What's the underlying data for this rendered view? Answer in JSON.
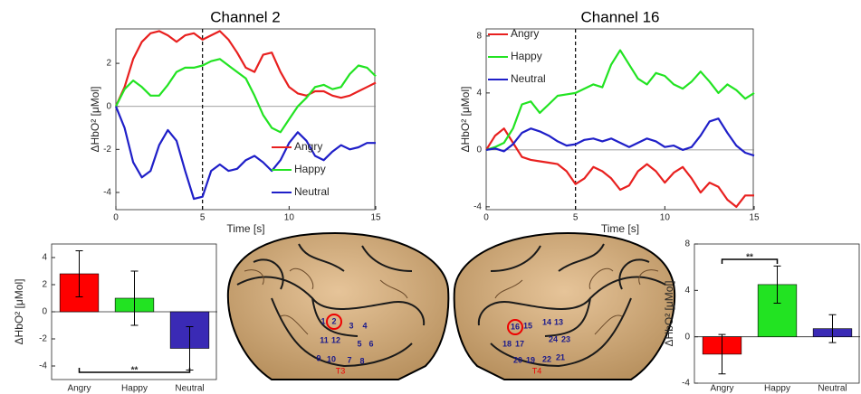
{
  "chart_data": [
    {
      "type": "line",
      "title": "Channel 2",
      "xlabel": "Time [s]",
      "ylabel": "ΔHbO² [μMol]",
      "x": [
        0,
        0.5,
        1,
        1.5,
        2,
        2.5,
        3,
        3.5,
        4,
        4.5,
        5,
        5.5,
        6,
        6.5,
        7,
        7.5,
        8,
        8.5,
        9,
        9.5,
        10,
        10.5,
        11,
        11.5,
        12,
        12.5,
        13,
        13.5,
        14,
        14.5,
        15
      ],
      "series": [
        {
          "name": "Angry",
          "color": "#e8201f",
          "values": [
            0,
            0.9,
            2.2,
            3.0,
            3.4,
            3.5,
            3.3,
            3.0,
            3.3,
            3.4,
            3.1,
            3.3,
            3.5,
            3.1,
            2.5,
            1.8,
            1.6,
            2.4,
            2.5,
            1.6,
            0.9,
            0.6,
            0.5,
            0.7,
            0.7,
            0.5,
            0.4,
            0.5,
            0.7,
            0.9,
            1.1
          ]
        },
        {
          "name": "Happy",
          "color": "#22e322",
          "values": [
            0,
            0.8,
            1.2,
            0.9,
            0.5,
            0.5,
            1.0,
            1.6,
            1.8,
            1.8,
            1.9,
            2.1,
            2.2,
            1.9,
            1.6,
            1.3,
            0.5,
            -0.4,
            -1.0,
            -1.2,
            -0.6,
            0.0,
            0.4,
            0.9,
            1.0,
            0.8,
            0.9,
            1.5,
            1.9,
            1.8,
            1.4
          ]
        },
        {
          "name": "Neutral",
          "color": "#1f1fc8",
          "values": [
            0,
            -1.0,
            -2.6,
            -3.3,
            -3.0,
            -1.8,
            -1.1,
            -1.6,
            -3.0,
            -4.3,
            -4.2,
            -3.0,
            -2.7,
            -3.0,
            -2.9,
            -2.5,
            -2.3,
            -2.6,
            -3.0,
            -2.5,
            -1.7,
            -1.2,
            -1.6,
            -2.3,
            -2.5,
            -2.1,
            -1.8,
            -2.0,
            -1.9,
            -1.7,
            -1.7
          ]
        }
      ],
      "xlim": [
        0,
        15
      ],
      "xticks": [
        0,
        5,
        10,
        15
      ],
      "ylim": [
        -4.8,
        3.6
      ],
      "yticks": [
        -4,
        -2,
        0,
        2
      ],
      "vline": 5,
      "hline": 0,
      "legend": "lower right"
    },
    {
      "type": "line",
      "title": "Channel 16",
      "xlabel": "Time [s]",
      "ylabel": "ΔHbO² [μMol]",
      "x": [
        0,
        0.5,
        1,
        1.5,
        2,
        2.5,
        3,
        3.5,
        4,
        4.5,
        5,
        5.5,
        6,
        6.5,
        7,
        7.5,
        8,
        8.5,
        9,
        9.5,
        10,
        10.5,
        11,
        11.5,
        12,
        12.5,
        13,
        13.5,
        14,
        14.5,
        15
      ],
      "series": [
        {
          "name": "Angry",
          "color": "#e8201f",
          "values": [
            0,
            1.0,
            1.5,
            0.5,
            -0.5,
            -0.7,
            -0.8,
            -0.9,
            -1.0,
            -1.5,
            -2.4,
            -2.0,
            -1.2,
            -1.5,
            -2.0,
            -2.8,
            -2.5,
            -1.5,
            -1.0,
            -1.5,
            -2.3,
            -1.6,
            -1.2,
            -2.0,
            -3.0,
            -2.3,
            -2.6,
            -3.5,
            -4.0,
            -3.2,
            -3.2
          ]
        },
        {
          "name": "Happy",
          "color": "#22e322",
          "values": [
            0,
            0.2,
            0.5,
            1.5,
            3.2,
            3.4,
            2.6,
            3.2,
            3.8,
            3.9,
            4.0,
            4.3,
            4.6,
            4.4,
            6.0,
            7.0,
            6.0,
            5.0,
            4.6,
            5.4,
            5.2,
            4.6,
            4.3,
            4.8,
            5.5,
            4.8,
            4.0,
            4.6,
            4.2,
            3.6,
            4.0
          ]
        },
        {
          "name": "Neutral",
          "color": "#1f1fc8",
          "values": [
            0,
            0.1,
            -0.1,
            0.4,
            1.2,
            1.5,
            1.3,
            1.0,
            0.6,
            0.3,
            0.4,
            0.7,
            0.8,
            0.6,
            0.8,
            0.5,
            0.2,
            0.5,
            0.8,
            0.6,
            0.2,
            0.3,
            0.0,
            0.2,
            1.0,
            2.0,
            2.2,
            1.2,
            0.3,
            -0.2,
            -0.4
          ]
        }
      ],
      "xlim": [
        0,
        15
      ],
      "xticks": [
        0,
        5,
        10,
        15
      ],
      "ylim": [
        -4.2,
        8.5
      ],
      "yticks": [
        -4,
        0,
        4,
        8
      ],
      "vline": 5,
      "hline": 0,
      "legend": "upper left"
    },
    {
      "type": "bar",
      "ylabel": "ΔHbO² [μMol]",
      "categories": [
        "Angry",
        "Happy",
        "Neutral"
      ],
      "values": [
        2.8,
        1.0,
        -2.7
      ],
      "errors": [
        1.7,
        2.0,
        1.6
      ],
      "colors": [
        "#ff0000",
        "#22e322",
        "#3a2ab5"
      ],
      "ylim": [
        -5,
        5
      ],
      "yticks": [
        -4,
        -2,
        0,
        2,
        4
      ],
      "annotation": {
        "text": "**",
        "between": [
          "Angry",
          "Neutral"
        ],
        "side": "bottom"
      }
    },
    {
      "type": "bar",
      "ylabel": "ΔHbO² [μMol]",
      "categories": [
        "Angry",
        "Happy",
        "Neutral"
      ],
      "values": [
        -1.5,
        4.5,
        0.7
      ],
      "errors": [
        1.7,
        1.6,
        1.2
      ],
      "colors": [
        "#ff0000",
        "#22e322",
        "#3a2ab5"
      ],
      "ylim": [
        -4,
        8
      ],
      "yticks": [
        -4,
        0,
        4,
        8
      ],
      "annotation": {
        "text": "**",
        "between": [
          "Angry",
          "Happy"
        ],
        "side": "top"
      }
    }
  ],
  "brain_left": {
    "labels": [
      "1",
      "2",
      "3",
      "4",
      "11",
      "12",
      "5",
      "6",
      "9",
      "10",
      "7",
      "8"
    ],
    "region": "T3",
    "highlight": "2"
  },
  "brain_right": {
    "labels": [
      "16",
      "15",
      "14",
      "13",
      "18",
      "17",
      "24",
      "23",
      "20",
      "19",
      "22",
      "21"
    ],
    "region": "T4",
    "highlight": "16"
  }
}
